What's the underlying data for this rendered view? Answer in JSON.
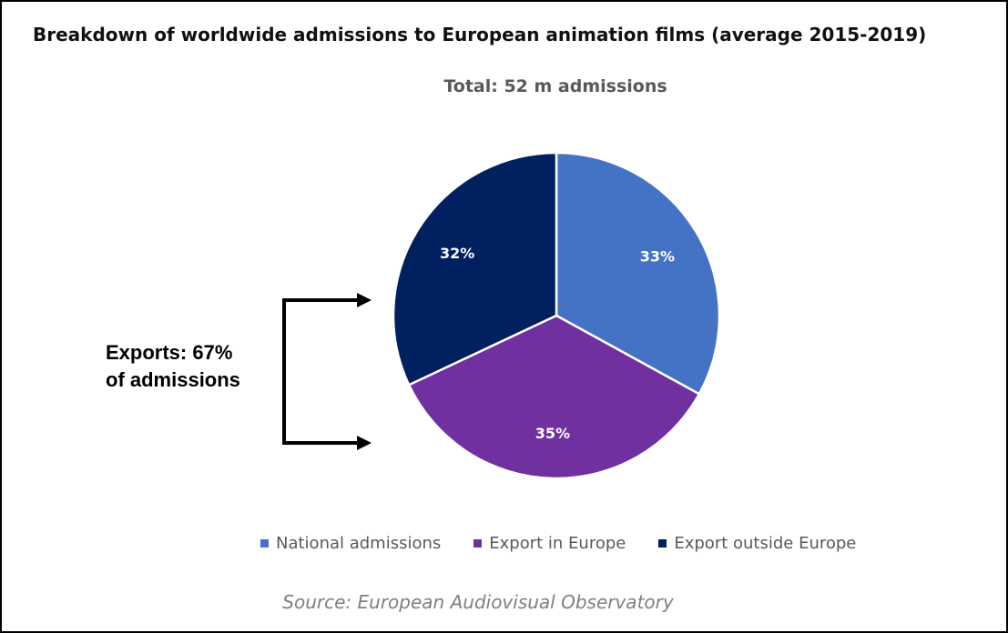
{
  "page": {
    "title": "Breakdown of worldwide admissions to European animation films (average 2015-2019)",
    "source": "Source: European Audiovisual Observatory",
    "exports_annotation": [
      "Exports: 67%",
      "of admissions"
    ]
  },
  "chart_data": {
    "type": "pie",
    "subtitle": "Total: 52 m admissions",
    "categories": [
      "National admissions",
      "Export in Europe",
      "Export outside Europe"
    ],
    "values": [
      33,
      35,
      32
    ],
    "data_labels": [
      "33%",
      "35%",
      "32%"
    ],
    "colors": [
      "#4472C4",
      "#7030A0",
      "#002060"
    ],
    "legend_position": "bottom",
    "start_angle": "12 o'clock, clockwise"
  }
}
